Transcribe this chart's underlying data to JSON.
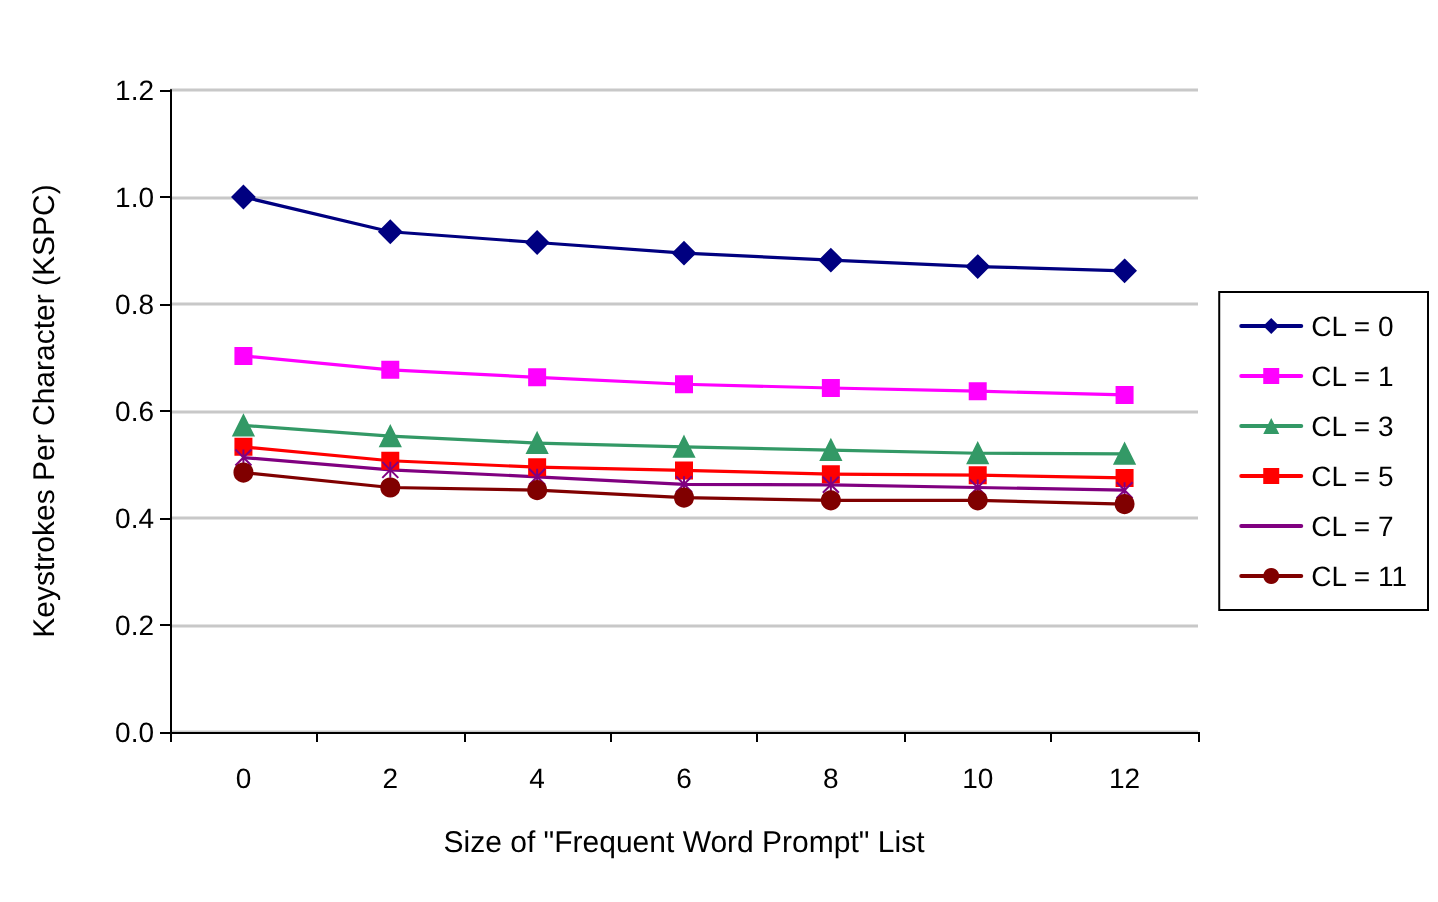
{
  "chart_data": {
    "type": "line",
    "xlabel": "Size of \"Frequent Word Prompt\" List",
    "ylabel": "Keystrokes Per Character (KSPC)",
    "categories": [
      "0",
      "2",
      "4",
      "6",
      "8",
      "10",
      "12"
    ],
    "series": [
      {
        "name": "CL = 0",
        "color": "#000080",
        "marker": "diamond",
        "values": [
          1.0,
          0.935,
          0.915,
          0.895,
          0.882,
          0.87,
          0.862
        ]
      },
      {
        "name": "CL = 1",
        "color": "#ff00ff",
        "marker": "square",
        "values": [
          0.703,
          0.677,
          0.663,
          0.65,
          0.643,
          0.637,
          0.63
        ]
      },
      {
        "name": "CL = 3",
        "color": "#339966",
        "marker": "triangle",
        "values": [
          0.573,
          0.553,
          0.54,
          0.533,
          0.527,
          0.521,
          0.52
        ]
      },
      {
        "name": "CL = 5",
        "color": "#ff0000",
        "marker": "square",
        "values": [
          0.533,
          0.507,
          0.495,
          0.489,
          0.482,
          0.48,
          0.475
        ]
      },
      {
        "name": "CL = 7",
        "color": "#800080",
        "marker": "cross",
        "values": [
          0.513,
          0.49,
          0.477,
          0.463,
          0.462,
          0.457,
          0.452
        ]
      },
      {
        "name": "CL = 11",
        "color": "#800000",
        "marker": "circle",
        "values": [
          0.485,
          0.457,
          0.452,
          0.438,
          0.433,
          0.433,
          0.426
        ]
      }
    ],
    "ylim": [
      0,
      1.2
    ],
    "yticks": [
      {
        "value": 0,
        "label": "0.0"
      },
      {
        "value": 0.2,
        "label": "0.2"
      },
      {
        "value": 0.4,
        "label": "0.4"
      },
      {
        "value": 0.6,
        "label": "0.6"
      },
      {
        "value": 0.8,
        "label": "0.8"
      },
      {
        "value": 1,
        "label": "1.0"
      },
      {
        "value": 1.2,
        "label": "1.2"
      }
    ],
    "grid": "y",
    "legend": "right",
    "line_style": "solid"
  }
}
